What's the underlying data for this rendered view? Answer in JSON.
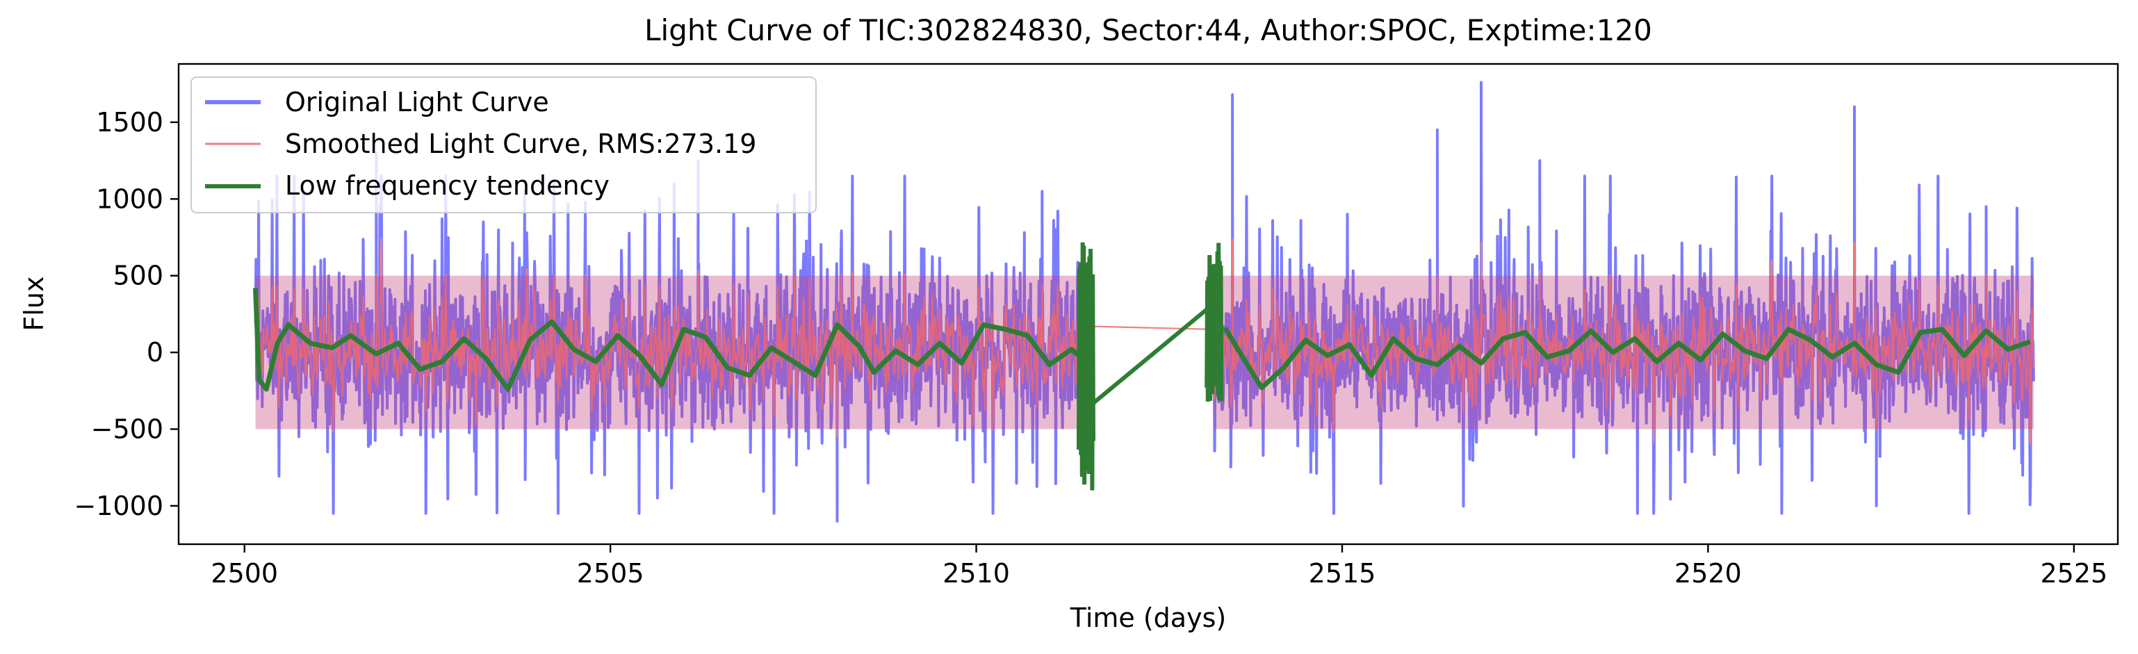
{
  "chart_data": {
    "type": "line",
    "title": "Light Curve of TIC:302824830, Sector:44, Author:SPOC, Exptime:120",
    "xlabel": "Time (days)",
    "ylabel": "Flux",
    "xlim": [
      2499.1,
      2525.6
    ],
    "ylim": [
      -1250,
      1880
    ],
    "x_ticks": [
      {
        "value": 2500,
        "label": "2500"
      },
      {
        "value": 2505,
        "label": "2505"
      },
      {
        "value": 2510,
        "label": "2510"
      },
      {
        "value": 2515,
        "label": "2515"
      },
      {
        "value": 2520,
        "label": "2520"
      },
      {
        "value": 2525,
        "label": "2525"
      }
    ],
    "y_ticks": [
      {
        "value": 1500,
        "label": "1500"
      },
      {
        "value": 1000,
        "label": "1000"
      },
      {
        "value": 500,
        "label": "500"
      },
      {
        "value": 0,
        "label": "0"
      },
      {
        "value": -500,
        "label": "−500"
      },
      {
        "value": -1000,
        "label": "−1000"
      }
    ],
    "grid": false,
    "legend_position": "top-left",
    "data_gap": [
      2511.6,
      2513.2
    ],
    "segments": [
      {
        "start": 2500.15,
        "end": 2511.55
      },
      {
        "start": 2513.25,
        "end": 2524.45
      }
    ],
    "series": [
      {
        "name": "Original Light Curve",
        "color": "#7b7bff",
        "style": "dense noisy flux, amplitude roughly -1100 to +1750",
        "noise_sigma": 330,
        "spikes": [
          {
            "x": 2501.8,
            "y": 1300
          },
          {
            "x": 2506.2,
            "y": 1250
          },
          {
            "x": 2508.1,
            "y": -1100
          },
          {
            "x": 2510.9,
            "y": 1050
          },
          {
            "x": 2513.5,
            "y": 1680
          },
          {
            "x": 2516.3,
            "y": 1450
          },
          {
            "x": 2516.9,
            "y": 1760
          },
          {
            "x": 2517.7,
            "y": 1250
          },
          {
            "x": 2522.0,
            "y": 1600
          },
          {
            "x": 2523.8,
            "y": 950
          },
          {
            "x": 2522.3,
            "y": -1000
          }
        ]
      },
      {
        "name": "Smoothed Light Curve, RMS:273.19",
        "color": "#f08080",
        "rms": 273.19,
        "bridge": [
          {
            "x": 2511.55,
            "y": 170
          },
          {
            "x": 2513.25,
            "y": 150
          }
        ]
      },
      {
        "name": "Low frequency tendency",
        "color": "#2e7d32",
        "points": [
          [
            2500.15,
            420
          ],
          [
            2500.2,
            -180
          ],
          [
            2500.3,
            -240
          ],
          [
            2500.45,
            60
          ],
          [
            2500.6,
            180
          ],
          [
            2500.9,
            60
          ],
          [
            2501.2,
            30
          ],
          [
            2501.45,
            110
          ],
          [
            2501.8,
            -10
          ],
          [
            2502.1,
            60
          ],
          [
            2502.4,
            -110
          ],
          [
            2502.7,
            -60
          ],
          [
            2503.0,
            90
          ],
          [
            2503.3,
            -40
          ],
          [
            2503.6,
            -240
          ],
          [
            2503.9,
            80
          ],
          [
            2504.2,
            200
          ],
          [
            2504.5,
            20
          ],
          [
            2504.8,
            -60
          ],
          [
            2505.1,
            110
          ],
          [
            2505.4,
            -20
          ],
          [
            2505.7,
            -210
          ],
          [
            2506.0,
            150
          ],
          [
            2506.3,
            100
          ],
          [
            2506.6,
            -100
          ],
          [
            2506.9,
            -150
          ],
          [
            2507.2,
            30
          ],
          [
            2507.5,
            -60
          ],
          [
            2507.8,
            -150
          ],
          [
            2508.1,
            180
          ],
          [
            2508.4,
            40
          ],
          [
            2508.6,
            -130
          ],
          [
            2508.9,
            10
          ],
          [
            2509.2,
            -80
          ],
          [
            2509.5,
            60
          ],
          [
            2509.8,
            -70
          ],
          [
            2510.1,
            180
          ],
          [
            2510.4,
            150
          ],
          [
            2510.7,
            110
          ],
          [
            2511.0,
            -80
          ],
          [
            2511.3,
            20
          ],
          [
            2511.5,
            -60
          ]
        ],
        "segment2_points": [
          [
            2513.4,
            160
          ],
          [
            2513.6,
            0
          ],
          [
            2513.9,
            -230
          ],
          [
            2514.2,
            -100
          ],
          [
            2514.5,
            80
          ],
          [
            2514.8,
            -20
          ],
          [
            2515.1,
            50
          ],
          [
            2515.4,
            -150
          ],
          [
            2515.7,
            90
          ],
          [
            2516.0,
            -40
          ],
          [
            2516.3,
            -80
          ],
          [
            2516.6,
            40
          ],
          [
            2516.9,
            -70
          ],
          [
            2517.2,
            90
          ],
          [
            2517.5,
            130
          ],
          [
            2517.8,
            -30
          ],
          [
            2518.1,
            10
          ],
          [
            2518.4,
            140
          ],
          [
            2518.7,
            0
          ],
          [
            2519.0,
            90
          ],
          [
            2519.3,
            -60
          ],
          [
            2519.6,
            60
          ],
          [
            2519.9,
            -50
          ],
          [
            2520.2,
            120
          ],
          [
            2520.5,
            10
          ],
          [
            2520.8,
            -40
          ],
          [
            2521.1,
            150
          ],
          [
            2521.4,
            80
          ],
          [
            2521.7,
            -30
          ],
          [
            2522.0,
            60
          ],
          [
            2522.3,
            -80
          ],
          [
            2522.6,
            -130
          ],
          [
            2522.9,
            130
          ],
          [
            2523.2,
            150
          ],
          [
            2523.5,
            -20
          ],
          [
            2523.8,
            140
          ],
          [
            2524.1,
            20
          ],
          [
            2524.4,
            70
          ]
        ],
        "bridge": [
          {
            "x": 2511.55,
            "y": -350
          },
          {
            "x": 2513.2,
            "y": 300
          }
        ],
        "edge_oscillation": [
          {
            "start": 2511.4,
            "end": 2511.6,
            "ymin": -900,
            "ymax": 750
          },
          {
            "start": 2513.15,
            "end": 2513.35,
            "ymin": -330,
            "ymax": 720
          }
        ]
      }
    ]
  }
}
